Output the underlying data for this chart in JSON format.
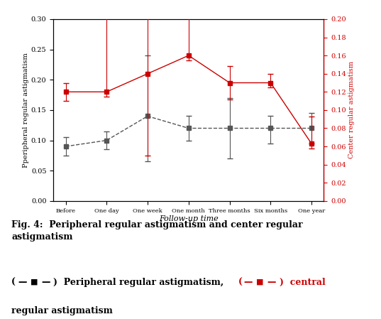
{
  "x_labels": [
    "Before",
    "One day",
    "One week",
    "One month",
    "Three months",
    "Six months",
    "One year"
  ],
  "black_y": [
    0.09,
    0.1,
    0.14,
    0.12,
    0.12,
    0.12,
    0.12
  ],
  "black_yerr_low": [
    0.015,
    0.015,
    0.075,
    0.02,
    0.05,
    0.025,
    0.025
  ],
  "black_yerr_high": [
    0.015,
    0.015,
    0.1,
    0.02,
    0.05,
    0.02,
    0.025
  ],
  "red_y": [
    0.12,
    0.12,
    0.14,
    0.16,
    0.13,
    0.13,
    0.063
  ],
  "red_yerr_low": [
    0.01,
    0.005,
    0.09,
    0.005,
    0.018,
    0.005,
    0.005
  ],
  "red_yerr_high": [
    0.01,
    0.09,
    0.07,
    0.115,
    0.018,
    0.01,
    0.03
  ],
  "left_ylabel": "Pperipheral regular astigmatism",
  "right_ylabel": "Center regular astigmatism",
  "xlabel": "Follow-up time",
  "left_ylim": [
    0.0,
    0.3
  ],
  "right_ylim": [
    0.0,
    0.2
  ],
  "left_yticks": [
    0.0,
    0.05,
    0.1,
    0.15,
    0.2,
    0.25,
    0.3
  ],
  "right_yticks": [
    0.0,
    0.02,
    0.04,
    0.06,
    0.08,
    0.1,
    0.12,
    0.14,
    0.16,
    0.18,
    0.2
  ],
  "black_color": "#555555",
  "red_color": "#cc0000",
  "caption_fig": "Fig. 4:  Peripheral regular astigmatism and center regular\nastigmatism",
  "caption_leg1": "Peripheral regular astigmatism,",
  "caption_leg2": "central\nregular astigmatism",
  "bg_color": "#ffffff"
}
